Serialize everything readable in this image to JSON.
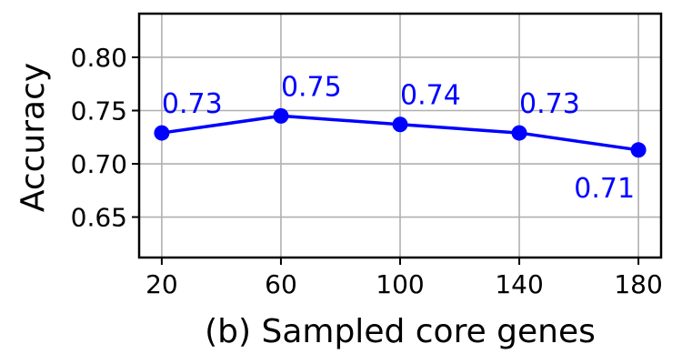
{
  "chart_data": {
    "type": "line",
    "xlabel": "(b) Sampled core genes",
    "ylabel": "Accuracy",
    "x": [
      20,
      60,
      100,
      140,
      180
    ],
    "series": [
      {
        "values": [
          0.729,
          0.745,
          0.737,
          0.729,
          0.713
        ],
        "color": "#0000ff"
      }
    ],
    "data_labels": [
      "0.73",
      "0.75",
      "0.74",
      "0.73",
      "0.71"
    ],
    "x_ticks": [
      "20",
      "60",
      "100",
      "140",
      "180"
    ],
    "y_ticks": [
      "0.65",
      "0.70",
      "0.75",
      "0.80"
    ],
    "x_tick_values": [
      20,
      60,
      100,
      140,
      180
    ],
    "y_tick_values": [
      0.65,
      0.7,
      0.75,
      0.8
    ],
    "xlim": [
      12.4,
      187.6
    ],
    "ylim": [
      0.612,
      0.841
    ],
    "grid": true,
    "legend": "none"
  }
}
